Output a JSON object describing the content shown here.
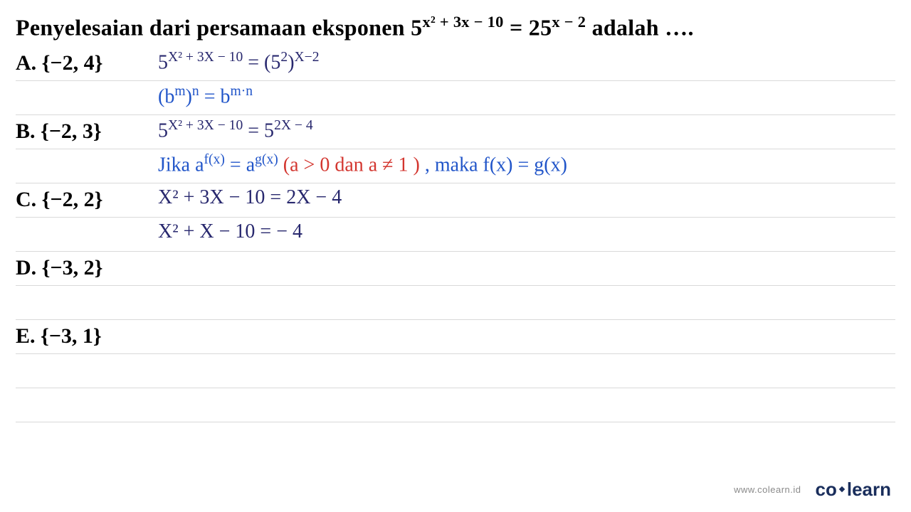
{
  "question": {
    "prefix": "Penyelesaian dari persamaan eksponen ",
    "eq_left_base": "5",
    "eq_left_exp": "x² + 3x − 10",
    "eq_mid": " = ",
    "eq_right_base": "25",
    "eq_right_exp": "x − 2",
    "suffix": " adalah ….",
    "text_color": "#000000",
    "fontsize": 32
  },
  "options": [
    {
      "label": "A.",
      "value": "{−2, 4}"
    },
    {
      "label": "B.",
      "value": "{−2, 3}"
    },
    {
      "label": "C.",
      "value": "{−2, 2}"
    },
    {
      "label": "D.",
      "value": "{−3, 2}"
    },
    {
      "label": "E.",
      "value": "{−3, 1}"
    }
  ],
  "work": {
    "line1": {
      "text": "5",
      "exp": "X² + 3X − 10",
      "mid": "  =  (5",
      "exp2": "2",
      "mid2": ")",
      "exp3": "X−2",
      "color": "#28286e"
    },
    "line2": {
      "lhs_base": "(b",
      "lhs_exp": "m",
      "lhs_close": ")",
      "lhs_outer_exp": "n",
      "eq": " = b",
      "rhs_exp": "m·n",
      "color": "#2155c9"
    },
    "line3": {
      "lhs_base": "5",
      "lhs_exp": "X² + 3X − 10",
      "eq": "  =  5",
      "rhs_exp": "2X − 4",
      "color": "#28286e"
    },
    "line4": {
      "p1": "Jika  a",
      "e1": "f(x)",
      "p2": " = a",
      "e2": "g(x)",
      "red": " (a > 0  dan  a ≠ 1 )",
      "p3": " ,  maka  f(x) = g(x)",
      "color_main": "#2155c9",
      "color_cond": "#d3362f"
    },
    "line5": {
      "text": "X² + 3X − 10  =  2X − 4",
      "color": "#28286e"
    },
    "line6": {
      "text": "X²  +  X  − 10    =   − 4",
      "color": "#28286e"
    }
  },
  "styling": {
    "ruled_line_color": "#d9d9d9",
    "line_height": 48,
    "background_color": "#ffffff",
    "handwriting_font": "Comic Sans MS",
    "print_font": "Times New Roman",
    "handwriting_color_dark": "#28286e",
    "handwriting_color_blue": "#2155c9",
    "handwriting_color_red": "#d3362f",
    "handwriting_fontsize": 28,
    "option_fontsize": 30
  },
  "footer": {
    "url": "www.colearn.id",
    "logo_co": "co",
    "logo_learn": "learn",
    "url_color": "#8a8a8a",
    "logo_color": "#1a2e5c"
  }
}
